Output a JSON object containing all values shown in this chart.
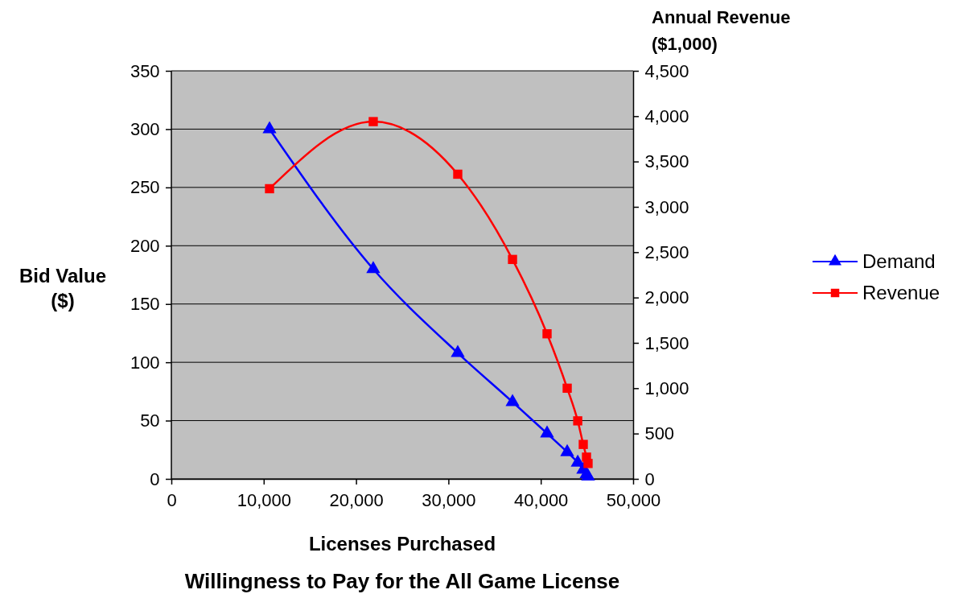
{
  "chart_data": {
    "type": "line",
    "title": "Willingness to Pay for the All Game License",
    "xlabel": "Licenses Purchased",
    "ylabel": "Bid Value ($)",
    "y2label": "Annual Revenue ($1,000)",
    "xlim": [
      0,
      50000
    ],
    "xticks": [
      {
        "value": 0,
        "label": "0"
      },
      {
        "value": 10000,
        "label": "10,000"
      },
      {
        "value": 20000,
        "label": "20,000"
      },
      {
        "value": 30000,
        "label": "30,000"
      },
      {
        "value": 40000,
        "label": "40,000"
      },
      {
        "value": 50000,
        "label": "50,000"
      }
    ],
    "ylim": [
      0,
      350
    ],
    "yticks": [
      0,
      50,
      100,
      150,
      200,
      250,
      300,
      350
    ],
    "y2lim": [
      0,
      4500
    ],
    "y2ticks": [
      {
        "value": 0,
        "label": "0"
      },
      {
        "value": 500,
        "label": "500"
      },
      {
        "value": 1000,
        "label": "1,000"
      },
      {
        "value": 1500,
        "label": "1,500"
      },
      {
        "value": 2000,
        "label": "2,000"
      },
      {
        "value": 2500,
        "label": "2,500"
      },
      {
        "value": 3000,
        "label": "3,000"
      },
      {
        "value": 3500,
        "label": "3,500"
      },
      {
        "value": 4000,
        "label": "4,000"
      },
      {
        "value": 4500,
        "label": "4,500"
      }
    ],
    "grid": "y",
    "legend": "right",
    "series": [
      {
        "name": "Demand",
        "color": "#0000ff",
        "marker": "triangle",
        "x": [
          10630,
          21860,
          31010,
          36940,
          40680,
          42860,
          44000,
          44600,
          44950,
          45120
        ],
        "values": [
          300,
          180,
          108,
          66,
          39,
          23,
          14,
          8,
          4,
          2
        ]
      },
      {
        "name": "Revenue",
        "color": "#ff0000",
        "marker": "square",
        "axis": "y2",
        "x": [
          10630,
          21860,
          31010,
          36940,
          40680,
          42860,
          44000,
          44600,
          44950,
          45120
        ],
        "values": [
          3200,
          3940,
          3360,
          2420,
          1600,
          1000,
          640,
          380,
          240,
          170
        ]
      }
    ]
  }
}
